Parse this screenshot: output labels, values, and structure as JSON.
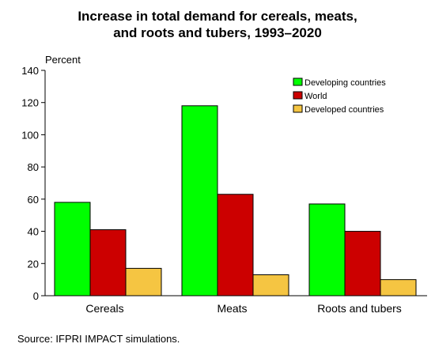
{
  "title_line1": "Increase in total demand for cereals, meats,",
  "title_line2": "and roots and tubers, 1993–2020",
  "source": "Source:  IFPRI IMPACT simulations.",
  "chart_data": {
    "type": "bar",
    "ylabel": "Percent",
    "ylim": [
      0,
      140
    ],
    "yticks": [
      0,
      20,
      40,
      60,
      80,
      100,
      120,
      140
    ],
    "categories": [
      "Cereals",
      "Meats",
      "Roots and tubers"
    ],
    "series": [
      {
        "name": "Developing countries",
        "color": "#00ff00",
        "values": [
          58,
          118,
          57
        ]
      },
      {
        "name": "World",
        "color": "#cc0000",
        "values": [
          41,
          63,
          40
        ]
      },
      {
        "name": "Developed countries",
        "color": "#f5c542",
        "values": [
          17,
          13,
          10
        ]
      }
    ],
    "legend_position": "top-right",
    "grid": false
  }
}
